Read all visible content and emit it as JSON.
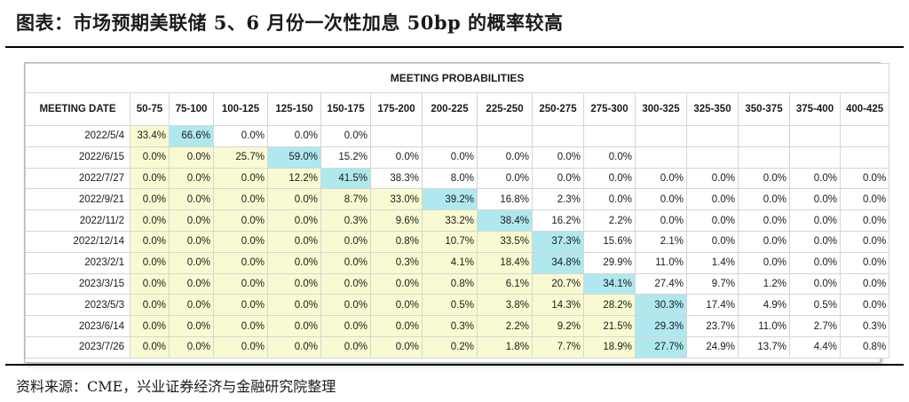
{
  "title": "图表：市场预期美联储 5、6 月份一次性加息 50bp 的概率较高",
  "source": "资料来源：CME，兴业证券经济与金融研究院整理",
  "table_title": "MEETING PROBABILITIES",
  "colors": {
    "highlight_max": "#b0e8f0",
    "highlight_range": "#fafad2"
  },
  "chart_data": {
    "type": "table",
    "title": "MEETING PROBABILITIES",
    "row_header": "MEETING DATE",
    "columns": [
      "50-75",
      "75-100",
      "100-125",
      "125-150",
      "150-175",
      "175-200",
      "200-225",
      "225-250",
      "250-275",
      "275-300",
      "300-325",
      "325-350",
      "350-375",
      "375-400",
      "400-425"
    ],
    "rows": [
      {
        "date": "2022/5/4",
        "values": [
          "33.4%",
          "66.6%",
          "0.0%",
          "0.0%",
          "0.0%",
          "",
          "",
          "",
          "",
          "",
          "",
          "",
          "",
          "",
          ""
        ],
        "max": 1
      },
      {
        "date": "2022/6/15",
        "values": [
          "0.0%",
          "0.0%",
          "25.7%",
          "59.0%",
          "15.2%",
          "0.0%",
          "0.0%",
          "0.0%",
          "0.0%",
          "0.0%",
          "",
          "",
          "",
          "",
          ""
        ],
        "max": 3
      },
      {
        "date": "2022/7/27",
        "values": [
          "0.0%",
          "0.0%",
          "0.0%",
          "12.2%",
          "41.5%",
          "38.3%",
          "8.0%",
          "0.0%",
          "0.0%",
          "0.0%",
          "0.0%",
          "0.0%",
          "0.0%",
          "0.0%",
          "0.0%"
        ],
        "max": 4
      },
      {
        "date": "2022/9/21",
        "values": [
          "0.0%",
          "0.0%",
          "0.0%",
          "0.0%",
          "8.7%",
          "33.0%",
          "39.2%",
          "16.8%",
          "2.3%",
          "0.0%",
          "0.0%",
          "0.0%",
          "0.0%",
          "0.0%",
          "0.0%"
        ],
        "max": 6
      },
      {
        "date": "2022/11/2",
        "values": [
          "0.0%",
          "0.0%",
          "0.0%",
          "0.0%",
          "0.3%",
          "9.6%",
          "33.2%",
          "38.4%",
          "16.2%",
          "2.2%",
          "0.0%",
          "0.0%",
          "0.0%",
          "0.0%",
          "0.0%"
        ],
        "max": 7
      },
      {
        "date": "2022/12/14",
        "values": [
          "0.0%",
          "0.0%",
          "0.0%",
          "0.0%",
          "0.0%",
          "0.8%",
          "10.7%",
          "33.5%",
          "37.3%",
          "15.6%",
          "2.1%",
          "0.0%",
          "0.0%",
          "0.0%",
          "0.0%"
        ],
        "max": 8
      },
      {
        "date": "2023/2/1",
        "values": [
          "0.0%",
          "0.0%",
          "0.0%",
          "0.0%",
          "0.0%",
          "0.3%",
          "4.1%",
          "18.4%",
          "34.8%",
          "29.9%",
          "11.0%",
          "1.4%",
          "0.0%",
          "0.0%",
          "0.0%"
        ],
        "max": 8
      },
      {
        "date": "2023/3/15",
        "values": [
          "0.0%",
          "0.0%",
          "0.0%",
          "0.0%",
          "0.0%",
          "0.0%",
          "0.8%",
          "6.1%",
          "20.7%",
          "34.1%",
          "27.4%",
          "9.7%",
          "1.2%",
          "0.0%",
          "0.0%"
        ],
        "max": 9
      },
      {
        "date": "2023/5/3",
        "values": [
          "0.0%",
          "0.0%",
          "0.0%",
          "0.0%",
          "0.0%",
          "0.0%",
          "0.5%",
          "3.8%",
          "14.3%",
          "28.2%",
          "30.3%",
          "17.4%",
          "4.9%",
          "0.5%",
          "0.0%"
        ],
        "max": 10
      },
      {
        "date": "2023/6/14",
        "values": [
          "0.0%",
          "0.0%",
          "0.0%",
          "0.0%",
          "0.0%",
          "0.0%",
          "0.3%",
          "2.2%",
          "9.2%",
          "21.5%",
          "29.3%",
          "23.7%",
          "11.0%",
          "2.7%",
          "0.3%"
        ],
        "max": 10
      },
      {
        "date": "2023/7/26",
        "values": [
          "0.0%",
          "0.0%",
          "0.0%",
          "0.0%",
          "0.0%",
          "0.0%",
          "0.2%",
          "1.8%",
          "7.7%",
          "18.9%",
          "27.7%",
          "24.9%",
          "13.7%",
          "4.4%",
          "0.8%"
        ],
        "max": 10
      }
    ]
  }
}
